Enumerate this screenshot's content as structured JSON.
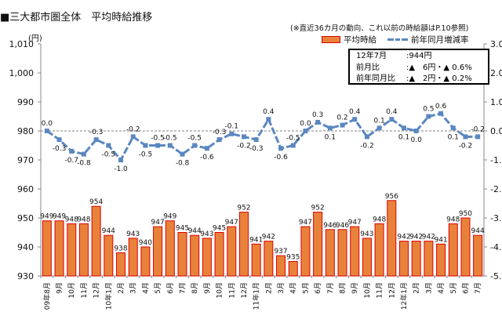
{
  "title": "■三大都市圏全体　平均時給推移",
  "note": "(※直近36カ月の動向、これ以前の時給額はP.10参照)",
  "unit": "(円)",
  "info_box": {
    "rows": [
      {
        "label": "12年7月",
        "value": ":944円"
      },
      {
        "label": "前月比",
        "value": ":▲　6円・▲ 0.6%"
      },
      {
        "label": "前年同月比",
        "value": ":▲　2円・▲ 0.2%"
      }
    ]
  },
  "chart_data": {
    "type": "bar+line",
    "title": "三大都市圏全体　平均時給推移",
    "ylabel": "(円)",
    "ylim": [
      930,
      1010
    ],
    "y_ticks": [
      "1,010",
      "1,000",
      "990",
      "980",
      "970",
      "960",
      "950",
      "940",
      "930"
    ],
    "y2lim": [
      -5,
      3
    ],
    "y2_ticks": [
      "3.0",
      "2.0",
      "1.0",
      "0.0",
      "-1.0",
      "-2.0",
      "-3.0",
      "-4.0",
      "-5.0"
    ],
    "legend": [
      "平均時給",
      "前年同月増減率"
    ],
    "legend_position": "top-right",
    "categories": [
      "09年8月",
      "9月",
      "10月",
      "11月",
      "12月",
      "10年1月",
      "2月",
      "3月",
      "4月",
      "5月",
      "6月",
      "7月",
      "8月",
      "9月",
      "10月",
      "11月",
      "12月",
      "11年1月",
      "2月",
      "3月",
      "4月",
      "5月",
      "6月",
      "7月",
      "8月",
      "9月",
      "10月",
      "11月",
      "12月",
      "12年1月",
      "2月",
      "3月",
      "4月",
      "5月",
      "6月",
      "7月"
    ],
    "series": [
      {
        "name": "平均時給",
        "type": "bar",
        "color": "#e8823a",
        "values": [
          949,
          949,
          948,
          948,
          954,
          944,
          938,
          943,
          940,
          947,
          949,
          945,
          944,
          943,
          945,
          947,
          952,
          941,
          942,
          937,
          935,
          947,
          952,
          946,
          946,
          947,
          943,
          948,
          956,
          942,
          942,
          942,
          941,
          948,
          950,
          944
        ]
      },
      {
        "name": "前年同月増減率",
        "type": "line",
        "axis": "right",
        "color": "#5b87c0",
        "values": [
          0.0,
          -0.3,
          -0.7,
          -0.8,
          -0.3,
          -0.5,
          -1.0,
          -0.2,
          -0.5,
          -0.5,
          -0.5,
          -0.8,
          -0.5,
          -0.6,
          -0.3,
          -0.1,
          -0.2,
          -0.3,
          0.4,
          -0.6,
          -0.5,
          0.0,
          0.3,
          0.1,
          0.2,
          0.4,
          -0.2,
          0.1,
          0.4,
          0.1,
          0.0,
          0.5,
          0.6,
          0.1,
          -0.2,
          -0.2
        ]
      }
    ]
  }
}
